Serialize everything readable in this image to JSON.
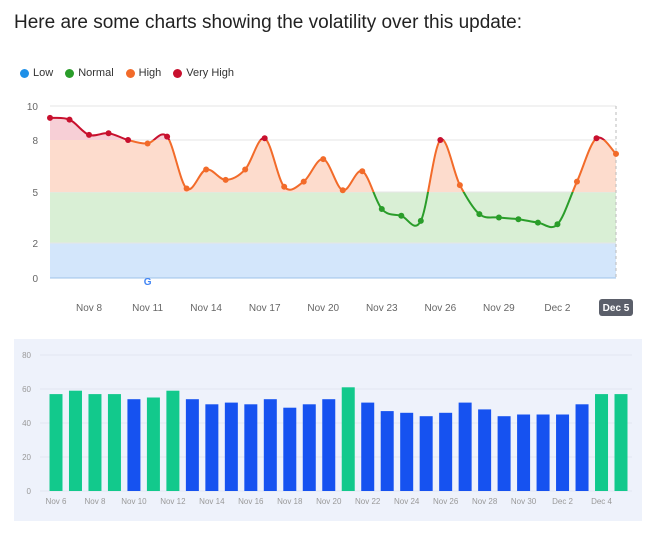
{
  "heading": "Here are some charts showing the volatility over this update:",
  "legend": [
    {
      "label": "Low",
      "color": "#1e90e8"
    },
    {
      "label": "Normal",
      "color": "#2a9d2a"
    },
    {
      "label": "High",
      "color": "#f26b2a"
    },
    {
      "label": "Very High",
      "color": "#c8102e"
    }
  ],
  "chart_data": [
    {
      "type": "line",
      "ylim": [
        0,
        10
      ],
      "yticks": [
        "0",
        "2",
        "5",
        "8",
        "10"
      ],
      "bands": [
        {
          "name": "Low",
          "from": 0,
          "to": 2,
          "color": "#d3e6fb"
        },
        {
          "name": "Normal",
          "from": 2,
          "to": 5,
          "color": "#d9efd5"
        },
        {
          "name": "High",
          "from": 5,
          "to": 8,
          "color": "#fddccd"
        },
        {
          "name": "Very High",
          "from": 8,
          "to": 10,
          "color": "#f7cfd6"
        }
      ],
      "x": [
        "Nov 6",
        "Nov 7",
        "Nov 8",
        "Nov 9",
        "Nov 10",
        "Nov 11",
        "Nov 12",
        "Nov 13",
        "Nov 14",
        "Nov 15",
        "Nov 16",
        "Nov 17",
        "Nov 18",
        "Nov 19",
        "Nov 20",
        "Nov 21",
        "Nov 22",
        "Nov 23",
        "Nov 24",
        "Nov 25",
        "Nov 26",
        "Nov 27",
        "Nov 28",
        "Nov 29",
        "Nov 30",
        "Dec 1",
        "Dec 2",
        "Dec 3",
        "Dec 4",
        "Dec 5"
      ],
      "values": [
        9.3,
        9.2,
        8.3,
        8.4,
        8.0,
        7.8,
        8.2,
        5.2,
        6.3,
        5.7,
        6.3,
        8.1,
        5.3,
        5.6,
        6.9,
        5.1,
        6.2,
        4.0,
        3.6,
        3.3,
        8.0,
        5.4,
        3.7,
        3.5,
        3.4,
        3.2,
        3.1,
        5.6,
        8.1,
        7.2
      ],
      "xtick_labels": [
        "Nov 8",
        "Nov 11",
        "Nov 14",
        "Nov 17",
        "Nov 20",
        "Nov 23",
        "Nov 26",
        "Nov 29",
        "Dec 2",
        "Dec 5"
      ],
      "highlighted_label": "Dec 5",
      "annotation": {
        "date": "Nov 11",
        "icon": "google-icon"
      },
      "grid": true
    },
    {
      "type": "bar",
      "ylim": [
        0,
        80
      ],
      "yticks": [
        "0",
        "20",
        "40",
        "60",
        "80"
      ],
      "categories": [
        "Nov 6",
        "Nov 7",
        "Nov 8",
        "Nov 9",
        "Nov 10",
        "Nov 11",
        "Nov 12",
        "Nov 13",
        "Nov 14",
        "Nov 15",
        "Nov 16",
        "Nov 17",
        "Nov 18",
        "Nov 19",
        "Nov 20",
        "Nov 21",
        "Nov 22",
        "Nov 23",
        "Nov 24",
        "Nov 25",
        "Nov 26",
        "Nov 27",
        "Nov 28",
        "Nov 29",
        "Nov 30",
        "Dec 1",
        "Dec 2",
        "Dec 3",
        "Dec 4",
        "Dec 5"
      ],
      "values": [
        57,
        59,
        57,
        57,
        54,
        55,
        59,
        54,
        51,
        52,
        51,
        54,
        49,
        51,
        54,
        61,
        52,
        47,
        46,
        44,
        46,
        52,
        48,
        44,
        45,
        45,
        45,
        51,
        57,
        57
      ],
      "highlight": [
        true,
        true,
        true,
        true,
        false,
        true,
        true,
        false,
        false,
        false,
        false,
        false,
        false,
        false,
        false,
        true,
        false,
        false,
        false,
        false,
        false,
        false,
        false,
        false,
        false,
        false,
        false,
        false,
        true,
        true
      ],
      "colors": {
        "normal": "#1652f0",
        "highlight": "#12c98c"
      },
      "xtick_labels": [
        "Nov 6",
        "Nov 8",
        "Nov 10",
        "Nov 12",
        "Nov 14",
        "Nov 16",
        "Nov 18",
        "Nov 20",
        "Nov 22",
        "Nov 24",
        "Nov 26",
        "Nov 28",
        "Nov 30",
        "Dec 2",
        "Dec 4"
      ],
      "grid": true
    }
  ]
}
